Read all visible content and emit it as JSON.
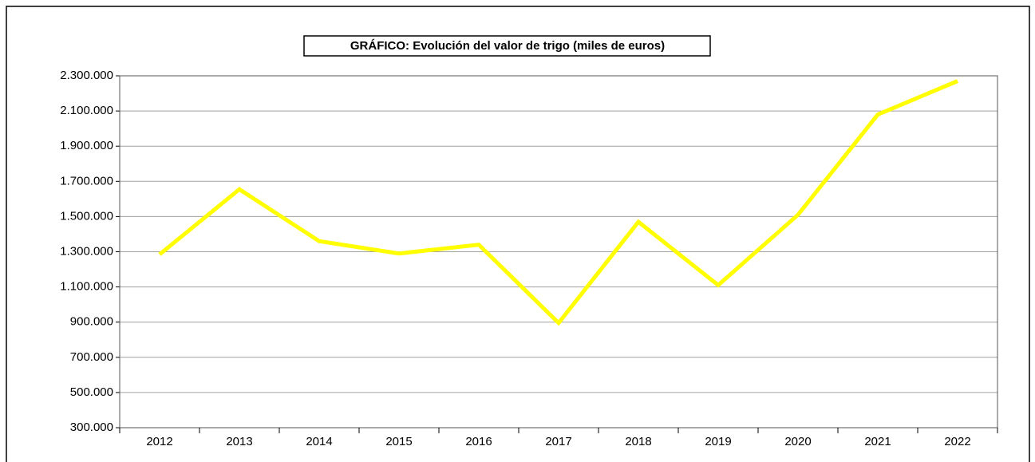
{
  "chart_data": {
    "type": "line",
    "title": "GRÁFICO: Evolución del valor de trigo (miles de euros)",
    "categories": [
      "2012",
      "2013",
      "2014",
      "2015",
      "2016",
      "2017",
      "2018",
      "2019",
      "2020",
      "2021",
      "2022"
    ],
    "series": [
      {
        "name": "Valor de trigo",
        "color": "#ffff00",
        "values": [
          1285000,
          1655000,
          1360000,
          1290000,
          1340000,
          895000,
          1470000,
          1110000,
          1510000,
          2080000,
          2270000
        ]
      }
    ],
    "ylim": [
      300000,
      2300000
    ],
    "yticks": [
      {
        "value": 300000,
        "label": "300.000"
      },
      {
        "value": 500000,
        "label": "500.000"
      },
      {
        "value": 700000,
        "label": "700.000"
      },
      {
        "value": 900000,
        "label": "900.000"
      },
      {
        "value": 1100000,
        "label": "1.100.000"
      },
      {
        "value": 1300000,
        "label": "1.300.000"
      },
      {
        "value": 1500000,
        "label": "1.500.000"
      },
      {
        "value": 1700000,
        "label": "1.700.000"
      },
      {
        "value": 1900000,
        "label": "1.900.000"
      },
      {
        "value": 2100000,
        "label": "2.100.000"
      },
      {
        "value": 2300000,
        "label": "2.300.000"
      }
    ],
    "grid": true
  }
}
